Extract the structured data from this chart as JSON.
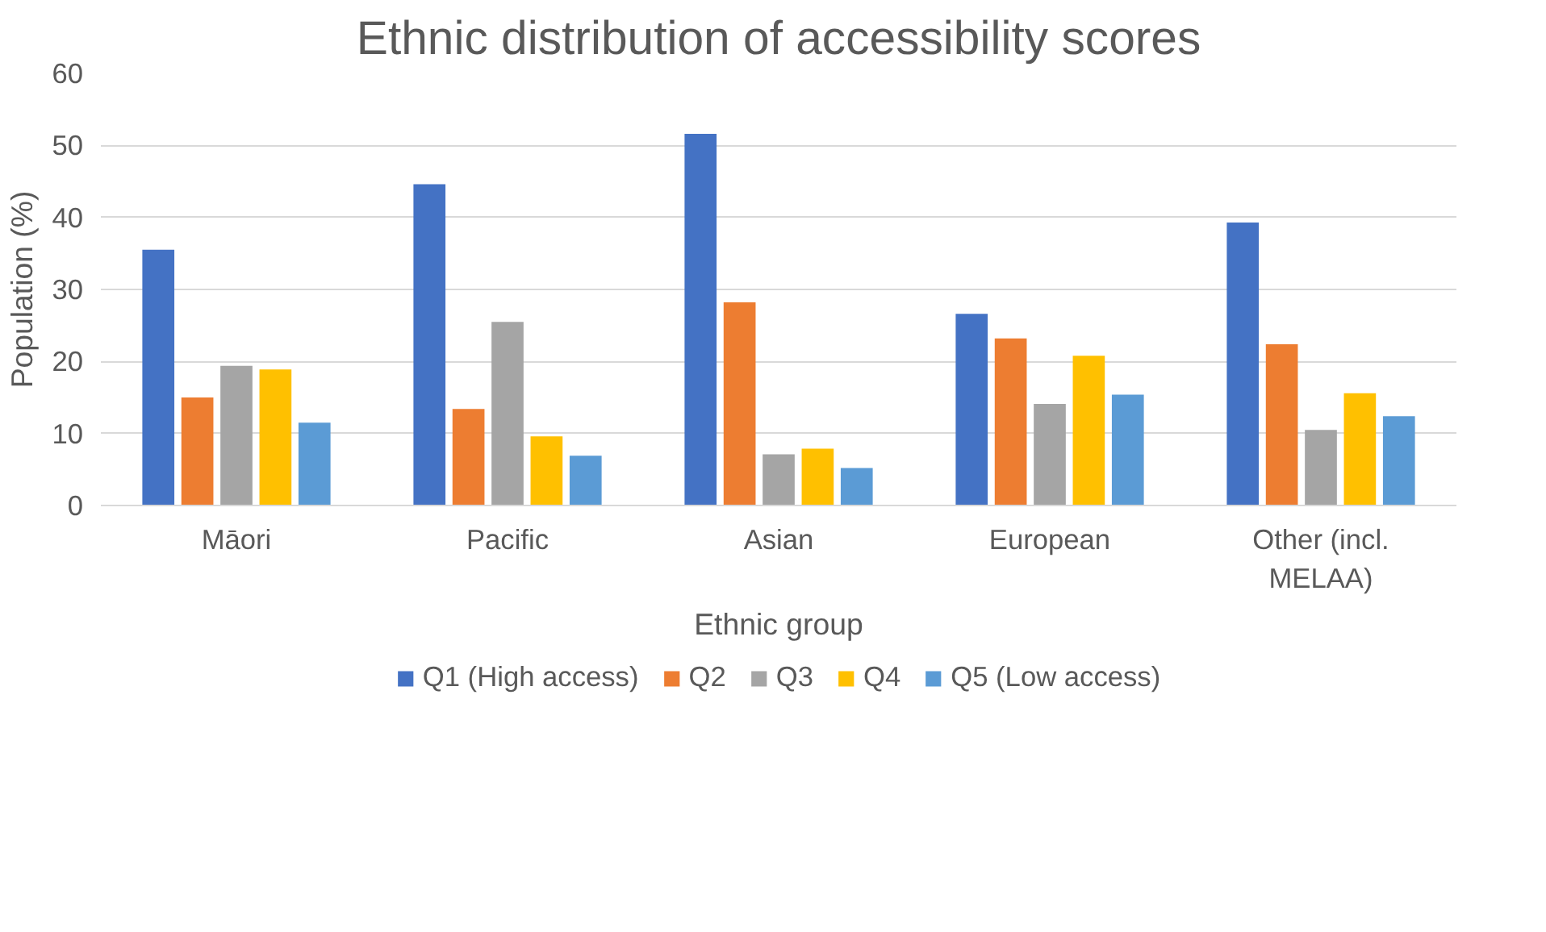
{
  "chart_data": {
    "type": "bar",
    "title": "Ethnic distribution of accessibility scores",
    "xlabel": "Ethnic group",
    "ylabel": "Population (%)",
    "categories": [
      "Māori",
      "Pacific",
      "Asian",
      "European",
      "Other (incl. MELAA)"
    ],
    "series": [
      {
        "name": "Q1 (High access)",
        "color": "#4472c4",
        "values": [
          35.5,
          44.6,
          51.6,
          26.6,
          39.3
        ]
      },
      {
        "name": "Q2",
        "color": "#ed7d31",
        "values": [
          15.0,
          13.4,
          28.2,
          23.2,
          22.4
        ]
      },
      {
        "name": "Q3",
        "color": "#a5a5a5",
        "values": [
          19.4,
          25.5,
          7.1,
          14.1,
          10.5
        ]
      },
      {
        "name": "Q4",
        "color": "#ffc000",
        "values": [
          18.9,
          9.6,
          7.9,
          20.8,
          15.6
        ]
      },
      {
        "name": "Q5 (Low access)",
        "color": "#5b9bd5",
        "values": [
          11.5,
          6.9,
          5.2,
          15.4,
          12.4
        ]
      }
    ],
    "ylim": [
      0,
      60
    ],
    "yticks": [
      0,
      10,
      20,
      30,
      40,
      50,
      60
    ],
    "grid": "y",
    "legend": "bottom"
  }
}
